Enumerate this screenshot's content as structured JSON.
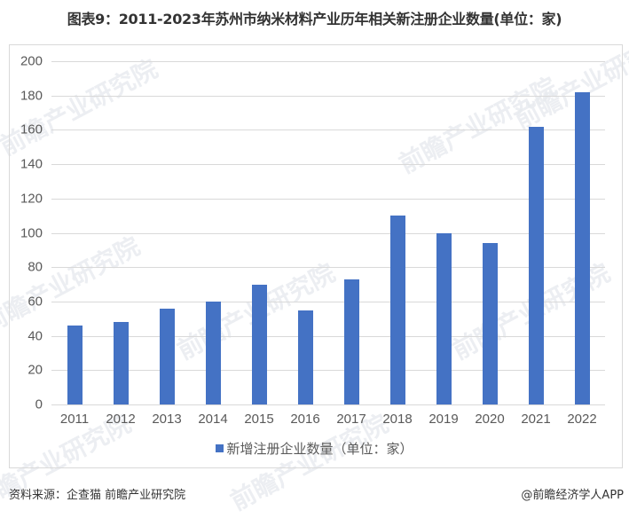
{
  "title": "图表9：2011-2023年苏州市纳米材料产业历年相关新注册企业数量(单位：家)",
  "watermark": "前瞻产业研究院",
  "legend": {
    "label": "新增注册企业数量（单位：家）",
    "color": "#4472c4"
  },
  "footer": {
    "source": "资料来源：企查猫 前瞻产业研究院",
    "credit": "@前瞻经济学人APP"
  },
  "chart_data": {
    "type": "bar",
    "title": "图表9：2011-2023年苏州市纳米材料产业历年相关新注册企业数量(单位：家)",
    "xlabel": "",
    "ylabel": "",
    "categories": [
      "2011",
      "2012",
      "2013",
      "2014",
      "2015",
      "2016",
      "2017",
      "2018",
      "2019",
      "2020",
      "2021",
      "2022"
    ],
    "series": [
      {
        "name": "新增注册企业数量（单位：家）",
        "color": "#4472c4",
        "values": [
          46,
          48,
          56,
          60,
          70,
          55,
          73,
          110,
          100,
          94,
          162,
          182
        ]
      }
    ],
    "ylim": [
      0,
      200
    ],
    "yticks": [
      0,
      20,
      40,
      60,
      80,
      100,
      120,
      140,
      160,
      180,
      200
    ],
    "grid": true,
    "legend_position": "bottom"
  }
}
